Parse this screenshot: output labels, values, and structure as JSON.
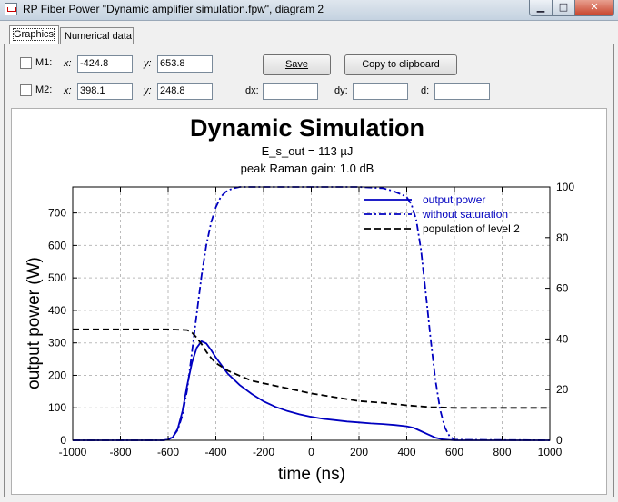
{
  "window": {
    "title": "RP Fiber Power \"Dynamic amplifier simulation.fpw\", diagram 2",
    "min_glyph": "▁",
    "max_glyph": "□",
    "close_glyph": "✕"
  },
  "tabs": [
    "Graphics",
    "Numerical data"
  ],
  "markers": {
    "m1_label": "M1:",
    "m2_label": "M2:",
    "x_label": "x:",
    "y_label": "y:",
    "m1_x": "-424.8",
    "m1_y": "653.8",
    "m2_x": "398.1",
    "m2_y": "248.8",
    "dx_label": "dx:",
    "dy_label": "dy:",
    "d_label": "d:",
    "dx": "",
    "dy": "",
    "d": ""
  },
  "buttons": {
    "save": "Save",
    "copy": "Copy to clipboard"
  },
  "chart_data": {
    "type": "line",
    "title": "Dynamic Simulation",
    "subtitle_lines": [
      "E_s_out = 113 µJ",
      "peak Raman gain: 1.0 dB"
    ],
    "xlabel": "time (ns)",
    "ylabel": "output power (W)",
    "y2label": "",
    "xlim": [
      -1000,
      1000
    ],
    "ylim": [
      0,
      780
    ],
    "y2lim": [
      0,
      100
    ],
    "xticks": [
      -1000,
      -800,
      -600,
      -400,
      -200,
      0,
      200,
      400,
      600,
      800,
      1000
    ],
    "yticks": [
      0,
      100,
      200,
      300,
      400,
      500,
      600,
      700
    ],
    "y2ticks": [
      0,
      20,
      40,
      60,
      80,
      100
    ],
    "grid": true,
    "legend_position": "top-right",
    "series": [
      {
        "name": "output power",
        "axis": "left",
        "style": "solid",
        "color": "#0000c0",
        "x": [
          -1000,
          -620,
          -600,
          -580,
          -560,
          -540,
          -520,
          -500,
          -480,
          -460,
          -440,
          -420,
          -400,
          -350,
          -300,
          -250,
          -200,
          -150,
          -100,
          -50,
          0,
          50,
          100,
          150,
          200,
          250,
          300,
          350,
          400,
          430,
          460,
          490,
          520,
          550,
          580,
          600,
          1000
        ],
        "y": [
          0,
          0,
          2,
          10,
          35,
          90,
          170,
          240,
          285,
          305,
          298,
          278,
          255,
          205,
          170,
          143,
          120,
          103,
          90,
          80,
          72,
          66,
          62,
          58,
          55,
          52,
          50,
          47,
          43,
          38,
          28,
          18,
          8,
          3,
          1,
          0,
          0
        ]
      },
      {
        "name": "without saturation",
        "axis": "right",
        "style": "dashdot",
        "color": "#0000c0",
        "x": [
          -1000,
          -620,
          -600,
          -580,
          -560,
          -540,
          -520,
          -500,
          -480,
          -460,
          -440,
          -420,
          -400,
          -380,
          -360,
          -340,
          -320,
          -300,
          -280,
          -260,
          200,
          300,
          340,
          380,
          400,
          420,
          440,
          460,
          480,
          500,
          520,
          540,
          560,
          580,
          600,
          1000
        ],
        "y": [
          0,
          0,
          0.3,
          1.5,
          4,
          10,
          20,
          35,
          50,
          65,
          77,
          86,
          92,
          96,
          98,
          99,
          99.6,
          100,
          100,
          100,
          100,
          99.5,
          98.5,
          97,
          96,
          93,
          87,
          75,
          58,
          40,
          24,
          12,
          5,
          1.5,
          0.2,
          0
        ]
      },
      {
        "name": "population of level 2",
        "axis": "right",
        "style": "dashed",
        "color": "#000000",
        "x": [
          -1000,
          -600,
          -520,
          -500,
          -480,
          -460,
          -440,
          -420,
          -400,
          -350,
          -300,
          -250,
          -200,
          -100,
          0,
          100,
          200,
          300,
          400,
          500,
          600,
          700,
          800,
          900,
          1000
        ],
        "y": [
          43.8,
          43.8,
          43.5,
          42.5,
          40.5,
          38,
          35,
          32.5,
          30.5,
          27.5,
          25.5,
          23.5,
          22.5,
          20.5,
          18.5,
          17,
          15.5,
          14.8,
          13.8,
          13.1,
          12.8,
          12.8,
          12.8,
          12.8,
          12.8
        ]
      }
    ]
  }
}
